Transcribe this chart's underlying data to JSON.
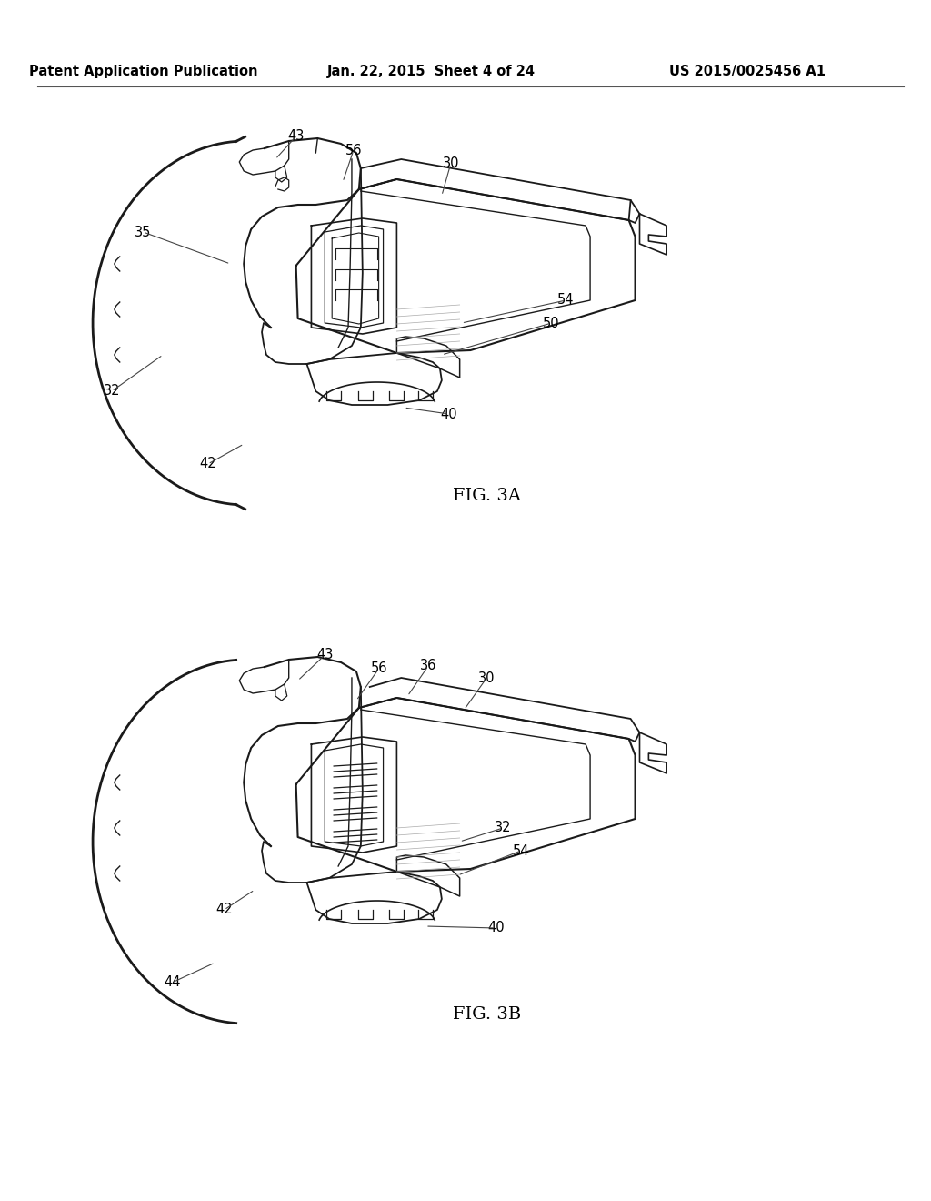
{
  "bg_color": "#ffffff",
  "header_left": "Patent Application Publication",
  "header_center": "Jan. 22, 2015  Sheet 4 of 24",
  "header_right": "US 2015/0025456 A1",
  "fig_label_3a": "FIG. 3A",
  "fig_label_3b": "FIG. 3B",
  "line_color": "#1a1a1a",
  "text_color": "#000000",
  "label_fontsize": 10.5,
  "header_fontsize": 10.5,
  "figlabel_fontsize": 14
}
